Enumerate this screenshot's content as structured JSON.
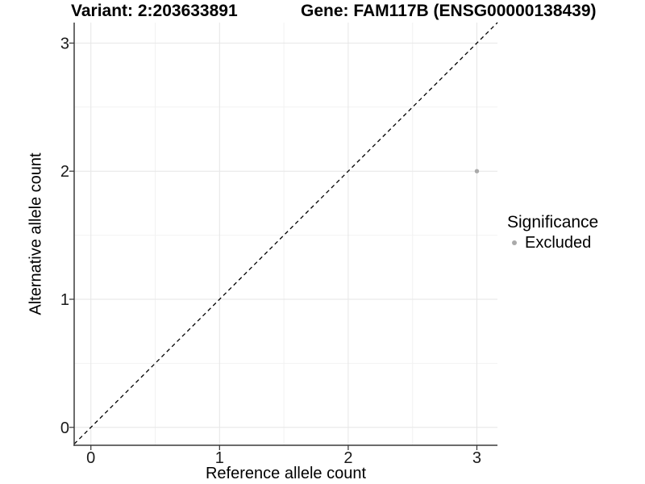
{
  "header": {
    "variant_title": "Variant: 2:203633891",
    "gene_title": "Gene: FAM117B (ENSG00000138439)"
  },
  "chart_data": {
    "type": "scatter",
    "title_left": "Variant: 2:203633891",
    "title_right": "Gene: FAM117B (ENSG00000138439)",
    "xlabel": "Reference allele count",
    "ylabel": "Alternative allele count",
    "xlim": [
      -0.13,
      3.16
    ],
    "ylim": [
      -0.14,
      3.16
    ],
    "x_ticks": [
      0,
      1,
      2,
      3
    ],
    "y_ticks": [
      0,
      1,
      2,
      3
    ],
    "x_minor_ticks": [
      0.5,
      1.5,
      2.5
    ],
    "y_minor_ticks": [
      0.5,
      1.5,
      2.5
    ],
    "grid": true,
    "legend_position": "right",
    "reference_line": {
      "kind": "identity",
      "style": "dashed",
      "color": "#000000"
    },
    "series": [
      {
        "name": "Excluded",
        "color": "#aaaaaa",
        "points": [
          {
            "x": 3,
            "y": 2
          }
        ]
      }
    ]
  },
  "legend": {
    "title": "Significance",
    "items": [
      {
        "label": "Excluded",
        "color": "#aaaaaa",
        "marker": "circle-icon"
      }
    ]
  },
  "colors": {
    "background": "#ffffff",
    "grid_major": "#e6e6e6",
    "grid_minor": "#f2f2f2",
    "axis_line": "#3c3c3c",
    "tick_mark": "#333333",
    "tick_label": "#1a1a1a"
  }
}
